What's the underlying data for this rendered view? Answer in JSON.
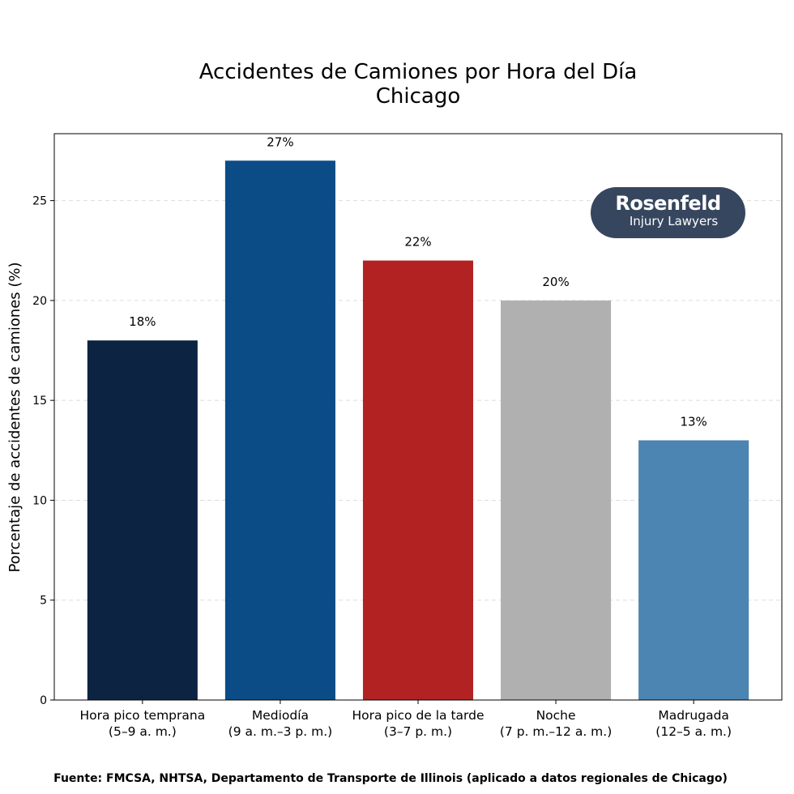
{
  "chart_data": {
    "type": "bar",
    "title": "Accidentes de Camiones por Hora del Día",
    "subtitle": "Chicago",
    "xlabel": "",
    "ylabel": "Porcentaje de accidentes de camiones (%)",
    "categories": [
      [
        "Hora pico temprana",
        "(5–9 a. m.)"
      ],
      [
        "Mediodía",
        "(9 a. m.–3 p. m.)"
      ],
      [
        "Hora pico de la tarde",
        "(3–7 p. m.)"
      ],
      [
        "Noche",
        "(7 p. m.–12 a. m.)"
      ],
      [
        "Madrugada",
        "(12–5 a. m.)"
      ]
    ],
    "values": [
      18,
      27,
      22,
      20,
      13
    ],
    "data_labels": [
      "18%",
      "27%",
      "22%",
      "20%",
      "13%"
    ],
    "colors": [
      "#0c2442",
      "#0b4c87",
      "#b22222",
      "#b0b0b0",
      "#4c84b2"
    ],
    "ylim": [
      0,
      28.35
    ],
    "yticks": [
      0,
      5,
      10,
      15,
      20,
      25
    ],
    "grid": "y-dashed",
    "legend": "none"
  },
  "logo": {
    "line1": "Rosenfeld",
    "line2": "Injury Lawyers"
  },
  "footer": "Fuente: FMCSA, NHTSA, Departamento de Transporte de Illinois (aplicado a datos regionales de Chicago)"
}
